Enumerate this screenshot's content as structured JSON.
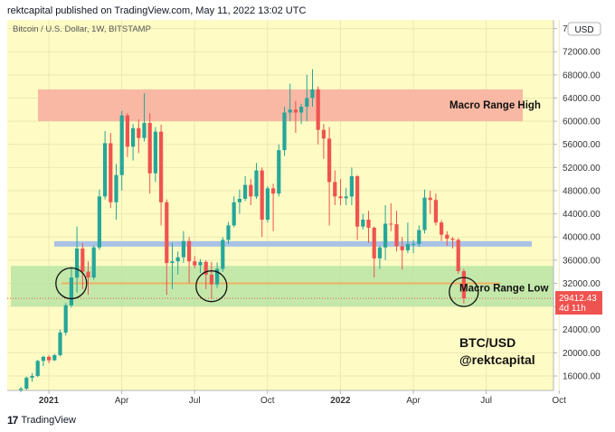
{
  "header": {
    "published_text": "rektcapital published on TradingView.com, May 11, 2022 13:02 UTC"
  },
  "footer": {
    "logo_text": "17",
    "brand": "TradingView"
  },
  "colors": {
    "background": "#fefbc4",
    "up": "#26a69a",
    "down": "#ef5350",
    "resistance_zone": "#f8b8a3",
    "support_zone": "#b9e4a6",
    "blue_line": "#a9c2e6",
    "orange_line": "#f0b060",
    "price_tag": "#ef5350"
  },
  "chart_data": {
    "type": "candlestick",
    "title": "Bitcoin / U.S. Dollar, 1W, BITSTAMP",
    "currency_label": "USD",
    "x_tick_labels": [
      "2021",
      "Apr",
      "Jul",
      "Oct",
      "2022",
      "Apr",
      "Jul",
      "Oct"
    ],
    "y_tick_labels": [
      "16000.00",
      "20000.00",
      "24000.00",
      "28000.00",
      "32000.00",
      "36000.00",
      "40000.00",
      "44000.00",
      "48000.00",
      "52000.00",
      "56000.00",
      "60000.00",
      "64000.00",
      "68000.00",
      "72000.00",
      "76000.00"
    ],
    "ylim": [
      13500,
      77500
    ],
    "last_price": "29412.43",
    "countdown": "4d 11h",
    "zones": [
      {
        "name": "Macro Range High",
        "from": 60000,
        "to": 65500
      },
      {
        "name": "Macro Range Low",
        "from": 28000,
        "to": 35000
      }
    ],
    "lines": [
      {
        "name": "blue resistance",
        "value": 38800
      },
      {
        "name": "orange support",
        "value": 32000
      }
    ],
    "annotations": [
      "Macro Range High",
      "Macro Range Low",
      "BTC/USD",
      "@rektcapital"
    ],
    "candles": [
      {
        "o": 13500,
        "h": 14100,
        "l": 13200,
        "c": 13800
      },
      {
        "o": 13800,
        "h": 15900,
        "l": 13600,
        "c": 15700
      },
      {
        "o": 15700,
        "h": 16500,
        "l": 15000,
        "c": 16000
      },
      {
        "o": 16000,
        "h": 18800,
        "l": 15800,
        "c": 18600
      },
      {
        "o": 18600,
        "h": 19500,
        "l": 17700,
        "c": 19300
      },
      {
        "o": 19300,
        "h": 19600,
        "l": 18200,
        "c": 18700
      },
      {
        "o": 18700,
        "h": 19800,
        "l": 18600,
        "c": 19600
      },
      {
        "o": 19600,
        "h": 24000,
        "l": 19400,
        "c": 23500
      },
      {
        "o": 23500,
        "h": 28600,
        "l": 23000,
        "c": 28200
      },
      {
        "o": 28200,
        "h": 34800,
        "l": 27800,
        "c": 33000
      },
      {
        "o": 33000,
        "h": 41800,
        "l": 30400,
        "c": 38000
      },
      {
        "o": 38000,
        "h": 39000,
        "l": 31000,
        "c": 34000
      },
      {
        "o": 34000,
        "h": 35800,
        "l": 30000,
        "c": 33000
      },
      {
        "o": 33000,
        "h": 38500,
        "l": 32600,
        "c": 38200
      },
      {
        "o": 38200,
        "h": 48200,
        "l": 37800,
        "c": 47000
      },
      {
        "o": 47000,
        "h": 58300,
        "l": 46500,
        "c": 56200
      },
      {
        "o": 56200,
        "h": 58000,
        "l": 45000,
        "c": 46000
      },
      {
        "o": 46000,
        "h": 52600,
        "l": 43000,
        "c": 50700
      },
      {
        "o": 50700,
        "h": 61800,
        "l": 48000,
        "c": 61000
      },
      {
        "o": 61000,
        "h": 61400,
        "l": 53800,
        "c": 55600
      },
      {
        "o": 55600,
        "h": 59500,
        "l": 53200,
        "c": 58800
      },
      {
        "o": 58800,
        "h": 60300,
        "l": 54500,
        "c": 57100
      },
      {
        "o": 57100,
        "h": 64800,
        "l": 56500,
        "c": 59700
      },
      {
        "o": 59700,
        "h": 61400,
        "l": 47500,
        "c": 51000
      },
      {
        "o": 51000,
        "h": 59000,
        "l": 49500,
        "c": 58200
      },
      {
        "o": 58200,
        "h": 59400,
        "l": 42000,
        "c": 46000
      },
      {
        "o": 46000,
        "h": 46500,
        "l": 30000,
        "c": 35500
      },
      {
        "o": 35500,
        "h": 39000,
        "l": 31000,
        "c": 35800
      },
      {
        "o": 35800,
        "h": 37500,
        "l": 33500,
        "c": 36500
      },
      {
        "o": 36500,
        "h": 41000,
        "l": 35500,
        "c": 39300
      },
      {
        "o": 39300,
        "h": 40000,
        "l": 32000,
        "c": 35800
      },
      {
        "o": 35800,
        "h": 36700,
        "l": 34600,
        "c": 35100
      },
      {
        "o": 35100,
        "h": 36200,
        "l": 33800,
        "c": 35700
      },
      {
        "o": 35700,
        "h": 36000,
        "l": 31000,
        "c": 33500
      },
      {
        "o": 33500,
        "h": 35700,
        "l": 29300,
        "c": 31800
      },
      {
        "o": 31800,
        "h": 35600,
        "l": 31200,
        "c": 34500
      },
      {
        "o": 34500,
        "h": 40000,
        "l": 34000,
        "c": 39500
      },
      {
        "o": 39500,
        "h": 42600,
        "l": 38800,
        "c": 42000
      },
      {
        "o": 42000,
        "h": 47000,
        "l": 41700,
        "c": 46000
      },
      {
        "o": 46000,
        "h": 48200,
        "l": 44000,
        "c": 46600
      },
      {
        "o": 46600,
        "h": 50500,
        "l": 46200,
        "c": 49000
      },
      {
        "o": 49000,
        "h": 50000,
        "l": 45500,
        "c": 47000
      },
      {
        "o": 47000,
        "h": 52800,
        "l": 46600,
        "c": 51500
      },
      {
        "o": 51500,
        "h": 52000,
        "l": 40000,
        "c": 43000
      },
      {
        "o": 43000,
        "h": 48800,
        "l": 42500,
        "c": 48400
      },
      {
        "o": 48400,
        "h": 49200,
        "l": 41000,
        "c": 47500
      },
      {
        "o": 47500,
        "h": 56000,
        "l": 47000,
        "c": 55000
      },
      {
        "o": 55000,
        "h": 62500,
        "l": 54000,
        "c": 61500
      },
      {
        "o": 61500,
        "h": 66500,
        "l": 60000,
        "c": 62000
      },
      {
        "o": 62000,
        "h": 63500,
        "l": 58000,
        "c": 61500
      },
      {
        "o": 61500,
        "h": 63000,
        "l": 59500,
        "c": 62500
      },
      {
        "o": 62500,
        "h": 68000,
        "l": 60000,
        "c": 64000
      },
      {
        "o": 64000,
        "h": 69000,
        "l": 62500,
        "c": 65500
      },
      {
        "o": 65500,
        "h": 66000,
        "l": 56000,
        "c": 58500
      },
      {
        "o": 58500,
        "h": 59500,
        "l": 53500,
        "c": 57000
      },
      {
        "o": 57000,
        "h": 59000,
        "l": 42000,
        "c": 49500
      },
      {
        "o": 49500,
        "h": 51500,
        "l": 45500,
        "c": 47000
      },
      {
        "o": 47000,
        "h": 50000,
        "l": 45500,
        "c": 46700
      },
      {
        "o": 46700,
        "h": 48500,
        "l": 45500,
        "c": 47000
      },
      {
        "o": 47000,
        "h": 52000,
        "l": 45500,
        "c": 50500
      },
      {
        "o": 50500,
        "h": 50700,
        "l": 39500,
        "c": 41800
      },
      {
        "o": 41800,
        "h": 44000,
        "l": 41300,
        "c": 43000
      },
      {
        "o": 43000,
        "h": 44500,
        "l": 39000,
        "c": 41600
      },
      {
        "o": 41600,
        "h": 41800,
        "l": 33000,
        "c": 36300
      },
      {
        "o": 36300,
        "h": 38500,
        "l": 34500,
        "c": 38200
      },
      {
        "o": 38200,
        "h": 45500,
        "l": 36000,
        "c": 42300
      },
      {
        "o": 42300,
        "h": 45800,
        "l": 41000,
        "c": 42200
      },
      {
        "o": 42200,
        "h": 44500,
        "l": 37500,
        "c": 38400
      },
      {
        "o": 38400,
        "h": 40000,
        "l": 34400,
        "c": 37700
      },
      {
        "o": 37700,
        "h": 42500,
        "l": 37200,
        "c": 38800
      },
      {
        "o": 38800,
        "h": 39500,
        "l": 37200,
        "c": 38800
      },
      {
        "o": 38800,
        "h": 42000,
        "l": 38300,
        "c": 41200
      },
      {
        "o": 41200,
        "h": 48200,
        "l": 40600,
        "c": 46800
      },
      {
        "o": 46800,
        "h": 48000,
        "l": 44000,
        "c": 46400
      },
      {
        "o": 46400,
        "h": 47500,
        "l": 42000,
        "c": 42500
      },
      {
        "o": 42500,
        "h": 42900,
        "l": 39300,
        "c": 40400
      },
      {
        "o": 40400,
        "h": 41000,
        "l": 38500,
        "c": 39700
      },
      {
        "o": 39700,
        "h": 40000,
        "l": 38000,
        "c": 39500
      },
      {
        "o": 39500,
        "h": 39800,
        "l": 33700,
        "c": 34100
      },
      {
        "o": 34100,
        "h": 34500,
        "l": 28500,
        "c": 29412
      }
    ]
  }
}
